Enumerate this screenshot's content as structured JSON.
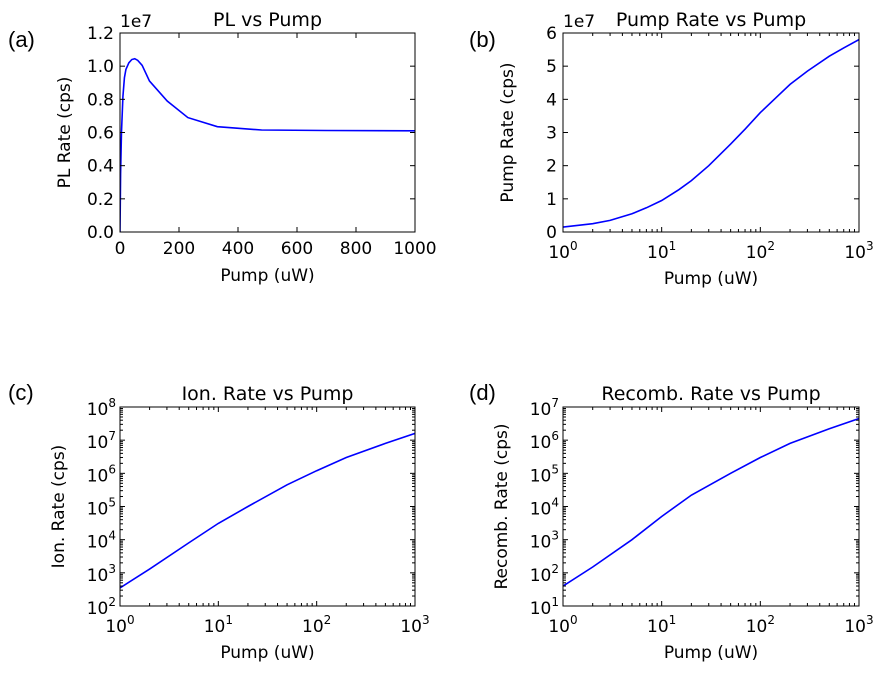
{
  "chart_data": [
    {
      "panel": "(a)",
      "type": "line",
      "title": "PL vs Pump",
      "xlabel": "Pump (uW)",
      "ylabel": "PL Rate (cps)",
      "x_scale": "linear",
      "y_scale": "linear",
      "xlim": [
        0,
        1000
      ],
      "ylim": [
        0,
        12000000
      ],
      "y_offset_text": "1e7",
      "x_ticks": [
        0,
        200,
        400,
        600,
        800,
        1000
      ],
      "x_tick_labels": [
        "0",
        "200",
        "400",
        "600",
        "800",
        "1000"
      ],
      "y_ticks": [
        0,
        2000000,
        4000000,
        6000000,
        8000000,
        10000000,
        12000000
      ],
      "y_tick_labels": [
        "0.0",
        "0.2",
        "0.4",
        "0.6",
        "0.8",
        "1.0",
        "1.2"
      ],
      "grid": false,
      "color": "#0000ff",
      "x": [
        0,
        2,
        5,
        10,
        15,
        20,
        30,
        40,
        50,
        60,
        75,
        100,
        160,
        230,
        330,
        480,
        700,
        1000
      ],
      "y": [
        0,
        3500000,
        6000000,
        8200000,
        9300000,
        9800000,
        10200000,
        10400000,
        10450000,
        10350000,
        10050000,
        9100000,
        7900000,
        6900000,
        6350000,
        6150000,
        6120000,
        6100000
      ]
    },
    {
      "panel": "(b)",
      "type": "line",
      "title": "Pump Rate vs Pump",
      "xlabel": "Pump (uW)",
      "ylabel": "Pump Rate (cps)",
      "x_scale": "log",
      "y_scale": "linear",
      "xlim": [
        1,
        1000
      ],
      "ylim": [
        0,
        60000000
      ],
      "y_offset_text": "1e7",
      "x_ticks": [
        1,
        10,
        100,
        1000
      ],
      "x_tick_base": [
        "10",
        "10",
        "10",
        "10"
      ],
      "x_tick_exp": [
        "0",
        "1",
        "2",
        "3"
      ],
      "y_ticks": [
        0,
        10000000,
        20000000,
        30000000,
        40000000,
        50000000,
        60000000
      ],
      "y_tick_labels": [
        "0",
        "1",
        "2",
        "3",
        "4",
        "5",
        "6"
      ],
      "grid": false,
      "color": "#0000ff",
      "x": [
        1,
        2,
        3,
        5,
        7,
        10,
        15,
        20,
        30,
        50,
        70,
        100,
        150,
        200,
        300,
        500,
        700,
        1000
      ],
      "y": [
        1500000,
        2500000,
        3500000,
        5500000,
        7300000,
        9500000,
        12800000,
        15500000,
        20000000,
        26500000,
        31000000,
        36000000,
        41000000,
        44500000,
        48500000,
        53000000,
        55500000,
        58000000
      ]
    },
    {
      "panel": "(c)",
      "type": "line",
      "title": "Ion. Rate vs Pump",
      "xlabel": "Pump (uW)",
      "ylabel": "Ion. Rate (cps)",
      "x_scale": "log",
      "y_scale": "log",
      "xlim": [
        1,
        1000
      ],
      "ylim": [
        100,
        100000000
      ],
      "x_ticks": [
        1,
        10,
        100,
        1000
      ],
      "x_tick_base": [
        "10",
        "10",
        "10",
        "10"
      ],
      "x_tick_exp": [
        "0",
        "1",
        "2",
        "3"
      ],
      "y_ticks": [
        100,
        1000,
        10000,
        100000,
        1000000,
        10000000,
        100000000
      ],
      "y_tick_base": [
        "10",
        "10",
        "10",
        "10",
        "10",
        "10",
        "10"
      ],
      "y_tick_exp": [
        "2",
        "3",
        "4",
        "5",
        "6",
        "7",
        "8"
      ],
      "grid": false,
      "color": "#0000ff",
      "x": [
        1,
        2,
        5,
        10,
        20,
        50,
        100,
        200,
        500,
        1000
      ],
      "y": [
        350,
        1300,
        8000,
        31000,
        100000,
        450000,
        1200000,
        3000000,
        8000000,
        16000000
      ]
    },
    {
      "panel": "(d)",
      "type": "line",
      "title": "Recomb. Rate vs Pump",
      "xlabel": "Pump (uW)",
      "ylabel": "Recomb. Rate (cps)",
      "x_scale": "log",
      "y_scale": "log",
      "xlim": [
        1,
        1000
      ],
      "ylim": [
        10,
        10000000
      ],
      "x_ticks": [
        1,
        10,
        100,
        1000
      ],
      "x_tick_base": [
        "10",
        "10",
        "10",
        "10"
      ],
      "x_tick_exp": [
        "0",
        "1",
        "2",
        "3"
      ],
      "y_ticks": [
        10,
        100,
        1000,
        10000,
        100000,
        1000000,
        10000000
      ],
      "y_tick_base": [
        "10",
        "10",
        "10",
        "10",
        "10",
        "10",
        "10"
      ],
      "y_tick_exp": [
        "1",
        "2",
        "3",
        "4",
        "5",
        "6",
        "7"
      ],
      "grid": false,
      "color": "#0000ff",
      "x": [
        1,
        2,
        5,
        10,
        20,
        50,
        100,
        200,
        500,
        1000
      ],
      "y": [
        40,
        150,
        1000,
        5000,
        22000,
        100000,
        300000,
        800000,
        2200000,
        4500000
      ]
    }
  ]
}
